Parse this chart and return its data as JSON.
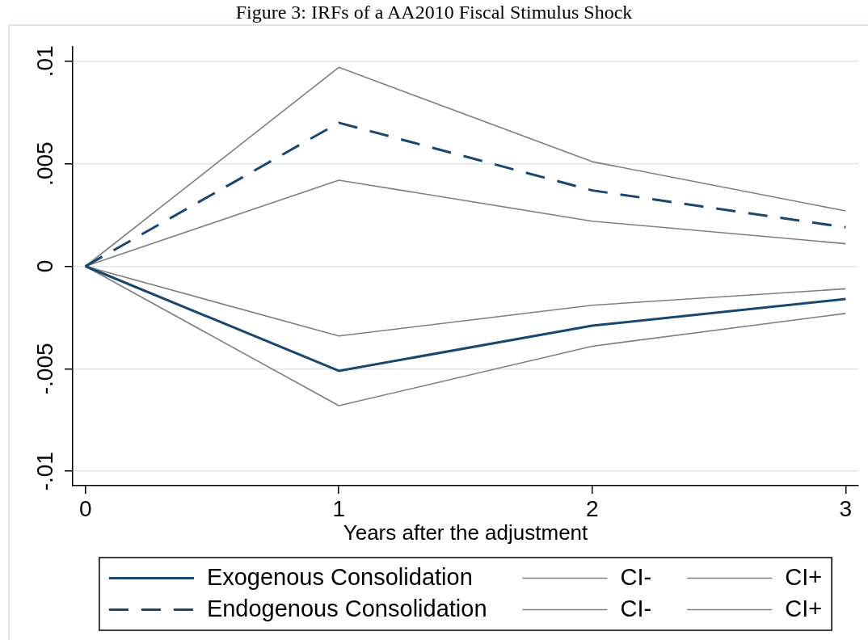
{
  "chart_data": {
    "type": "line",
    "title": "Figure 3: IRFs of a AA2010 Fiscal Stimulus Shock",
    "xlabel": "Years after the adjustment",
    "x": [
      0,
      1,
      2,
      3
    ],
    "xlim": [
      -0.05,
      3.05
    ],
    "xticks": [
      0,
      1,
      2,
      3
    ],
    "ylim": [
      -0.0107,
      0.0107
    ],
    "yticks": [
      {
        "value": -0.01,
        "label": "-.01"
      },
      {
        "value": -0.005,
        "label": "-.005"
      },
      0,
      {
        "value": 0.005,
        "label": ".005"
      },
      {
        "value": 0.01,
        "label": ".01"
      }
    ],
    "grid": "y",
    "legend": "bottom",
    "marker": "none",
    "series": [
      {
        "name": "Exogenous Consolidation",
        "color": "#1a476f",
        "line_style": "solid",
        "values": [
          0,
          -0.0051,
          -0.0029,
          -0.0016
        ]
      },
      {
        "name": "CI-",
        "color": "#7f7f7f",
        "line_style": "solid",
        "values": [
          0,
          -0.0068,
          -0.0039,
          -0.0023
        ]
      },
      {
        "name": "CI+",
        "color": "#7f7f7f",
        "line_style": "solid",
        "values": [
          0,
          -0.0034,
          -0.0019,
          -0.0011
        ]
      },
      {
        "name": "Endogenous Consolidation",
        "color": "#1a476f",
        "line_style": "dashed",
        "values": [
          0,
          0.007,
          0.0037,
          0.0019
        ]
      },
      {
        "name": "CI-",
        "color": "#7f7f7f",
        "line_style": "solid",
        "values": [
          0,
          0.0042,
          0.0022,
          0.0011
        ]
      },
      {
        "name": "CI+",
        "color": "#7f7f7f",
        "line_style": "solid",
        "values": [
          0,
          0.0097,
          0.0051,
          0.0027
        ]
      }
    ]
  }
}
